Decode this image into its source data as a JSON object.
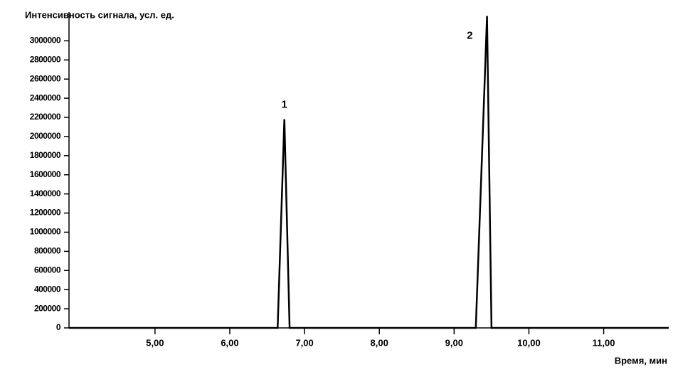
{
  "chart_data": {
    "type": "line",
    "ylabel": "Интенсивность сигнала, усл. ед.",
    "xlabel": "Время, мин",
    "xlim": [
      3.85,
      11.87
    ],
    "xticks": [
      {
        "value": 5,
        "label": "5,00"
      },
      {
        "value": 6,
        "label": "6,00"
      },
      {
        "value": 7,
        "label": "7,00"
      },
      {
        "value": 8,
        "label": "8,00"
      },
      {
        "value": 9,
        "label": "9,00"
      },
      {
        "value": 10,
        "label": "10,00"
      },
      {
        "value": 11,
        "label": "11,00"
      }
    ],
    "ylim": [
      0,
      3300000
    ],
    "yticks": [
      0,
      200000,
      400000,
      600000,
      800000,
      1000000,
      1200000,
      1400000,
      1600000,
      1800000,
      2000000,
      2200000,
      2400000,
      2600000,
      2800000,
      3000000
    ],
    "series": [
      {
        "color": "#000000",
        "x": [
          3.85,
          6.64,
          6.73,
          6.8,
          9.29,
          9.44,
          9.5,
          11.87
        ],
        "values": [
          0,
          0,
          2180000,
          0,
          0,
          3260000,
          0,
          0
        ]
      }
    ],
    "annotations": [
      {
        "text": "1",
        "x": 6.73,
        "y": 2330000
      },
      {
        "text": "2",
        "x": 9.21,
        "y": 3050000
      }
    ]
  }
}
